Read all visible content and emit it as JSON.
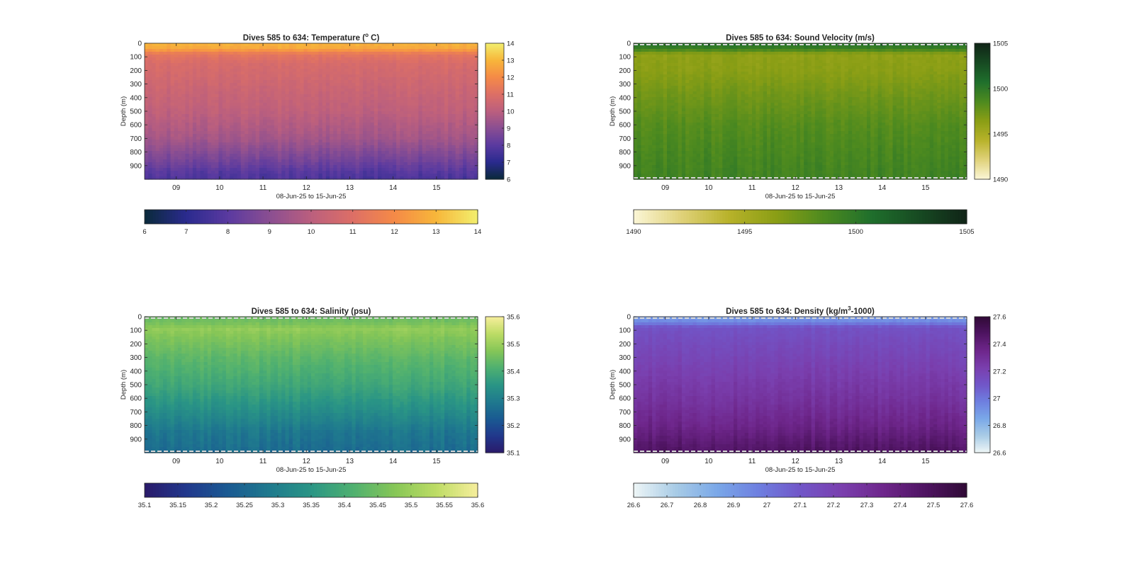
{
  "figure": {
    "shared": {
      "depth_axis_label": "Depth (m)",
      "time_axis_label": "08-Jun-25 to 15-Jun-25",
      "day_ticks": [
        "09",
        "10",
        "11",
        "12",
        "13",
        "14",
        "15"
      ],
      "depth_ticks": [
        "0",
        "100",
        "200",
        "300",
        "400",
        "500",
        "600",
        "700",
        "800",
        "900"
      ]
    }
  },
  "chart_data": [
    {
      "type": "heatmap",
      "title": "Dives 585 to 634: Temperature (° C)",
      "title_parts": {
        "main": "Dives 585 to 634: Temperature (",
        "sup": "o",
        "tail": " C)"
      },
      "xlabel": "08-Jun-25 to 15-Jun-25",
      "ylabel": "Depth (m)",
      "x": {
        "start_day": "08-Jun-25",
        "end_day": "15-Jun-25",
        "ticks": [
          "09",
          "10",
          "11",
          "12",
          "13",
          "14",
          "15"
        ]
      },
      "ylim": [
        0,
        1000
      ],
      "y_reversed": true,
      "clim": [
        6,
        14
      ],
      "colorbar_vertical_ticks": [
        "6",
        "7",
        "8",
        "9",
        "10",
        "11",
        "12",
        "13",
        "14"
      ],
      "colorbar_horizontal_ticks": [
        "6",
        "7",
        "8",
        "9",
        "10",
        "11",
        "12",
        "13",
        "14"
      ],
      "colormap": [
        "#0a2a3a",
        "#2a2a8e",
        "#5a3aa0",
        "#8a4e92",
        "#bb5f7e",
        "#dd6f66",
        "#f58a47",
        "#f7b63a",
        "#f2ef6e"
      ],
      "profile": [
        [
          0,
          12.9
        ],
        [
          40,
          12.7
        ],
        [
          80,
          11.3
        ],
        [
          150,
          10.8
        ],
        [
          300,
          10.5
        ],
        [
          500,
          10.1
        ],
        [
          700,
          9.5
        ],
        [
          850,
          8.6
        ],
        [
          950,
          7.9
        ],
        [
          1000,
          7.7
        ]
      ],
      "dashed_borders": false
    },
    {
      "type": "heatmap",
      "title": "Dives 585 to 634: Sound Velocity (m/s)",
      "title_parts": {
        "main": "Dives 585 to 634: Sound Velocity (m/s)",
        "sup": "",
        "tail": ""
      },
      "xlabel": "08-Jun-25 to 15-Jun-25",
      "ylabel": "Depth (m)",
      "x": {
        "start_day": "08-Jun-25",
        "end_day": "15-Jun-25",
        "ticks": [
          "09",
          "10",
          "11",
          "12",
          "13",
          "14",
          "15"
        ]
      },
      "ylim": [
        0,
        1000
      ],
      "y_reversed": true,
      "clim": [
        1490,
        1505
      ],
      "colorbar_vertical_ticks": [
        "1490",
        "1495",
        "1500",
        "1505"
      ],
      "colorbar_horizontal_ticks": [
        "1490",
        "1495",
        "1500",
        "1505"
      ],
      "colormap": [
        "#fbf6d6",
        "#e0d27a",
        "#b8b22a",
        "#8a9e15",
        "#4d8a1f",
        "#1f6f2c",
        "#174a22",
        "#102417"
      ],
      "profile": [
        [
          0,
          1500.6
        ],
        [
          40,
          1499.5
        ],
        [
          80,
          1496.2
        ],
        [
          200,
          1496.4
        ],
        [
          400,
          1497.4
        ],
        [
          600,
          1498.3
        ],
        [
          800,
          1498.8
        ],
        [
          1000,
          1499.2
        ]
      ],
      "dashed_borders": true
    },
    {
      "type": "heatmap",
      "title": "Dives 585 to 634: Salinity (psu)",
      "title_parts": {
        "main": "Dives 585 to 634: Salinity (psu)",
        "sup": "",
        "tail": ""
      },
      "xlabel": "08-Jun-25 to 15-Jun-25",
      "ylabel": "Depth (m)",
      "x": {
        "start_day": "08-Jun-25",
        "end_day": "15-Jun-25",
        "ticks": [
          "09",
          "10",
          "11",
          "12",
          "13",
          "14",
          "15"
        ]
      },
      "ylim": [
        0,
        1000
      ],
      "y_reversed": true,
      "clim": [
        35.1,
        35.6
      ],
      "colorbar_vertical_ticks": [
        "35.1",
        "35.2",
        "35.3",
        "35.4",
        "35.5",
        "35.6"
      ],
      "colorbar_horizontal_ticks": [
        "35.1",
        "35.15",
        "35.2",
        "35.25",
        "35.3",
        "35.35",
        "35.4",
        "35.45",
        "35.5",
        "35.55",
        "35.6"
      ],
      "colormap": [
        "#2a1a6a",
        "#21388c",
        "#1a5a92",
        "#1f7a8e",
        "#2a9585",
        "#4fb070",
        "#86c657",
        "#bddc65",
        "#f7ee9c"
      ],
      "profile": [
        [
          0,
          35.44
        ],
        [
          50,
          35.46
        ],
        [
          90,
          35.49
        ],
        [
          150,
          35.47
        ],
        [
          300,
          35.43
        ],
        [
          500,
          35.39
        ],
        [
          700,
          35.33
        ],
        [
          850,
          35.28
        ],
        [
          1000,
          35.26
        ]
      ],
      "dashed_borders": true
    },
    {
      "type": "heatmap",
      "title": "Dives 585 to 634: Density (kg/m³-1000)",
      "title_parts": {
        "main": "Dives 585 to 634: Density (kg/m",
        "sup": "3",
        "tail": "-1000)"
      },
      "xlabel": "08-Jun-25 to 15-Jun-25",
      "ylabel": "Depth (m)",
      "x": {
        "start_day": "08-Jun-25",
        "end_day": "15-Jun-25",
        "ticks": [
          "09",
          "10",
          "11",
          "12",
          "13",
          "14",
          "15"
        ]
      },
      "ylim": [
        0,
        1000
      ],
      "y_reversed": true,
      "clim": [
        26.6,
        27.6
      ],
      "colorbar_vertical_ticks": [
        "26.6",
        "26.8",
        "27",
        "27.2",
        "27.4",
        "27.6"
      ],
      "colorbar_horizontal_ticks": [
        "26.6",
        "26.7",
        "26.8",
        "26.9",
        "27",
        "27.1",
        "27.2",
        "27.3",
        "27.4",
        "27.5",
        "27.6"
      ],
      "colormap": [
        "#eef6f7",
        "#a9cce6",
        "#7aa8e8",
        "#6e7fe0",
        "#7156c8",
        "#7a3fae",
        "#6e268b",
        "#4f1462",
        "#300a36"
      ],
      "profile": [
        [
          0,
          26.88
        ],
        [
          40,
          26.95
        ],
        [
          80,
          27.12
        ],
        [
          200,
          27.16
        ],
        [
          400,
          27.22
        ],
        [
          600,
          27.28
        ],
        [
          800,
          27.36
        ],
        [
          900,
          27.42
        ],
        [
          1000,
          27.48
        ]
      ],
      "dashed_borders": true
    }
  ]
}
